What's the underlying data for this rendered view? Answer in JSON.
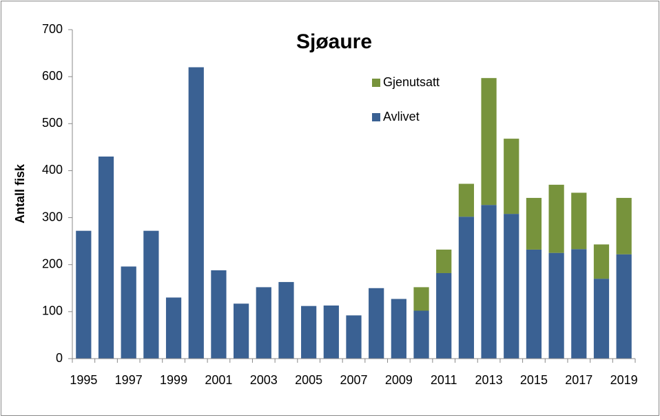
{
  "chart_data": {
    "type": "bar",
    "stacked": true,
    "title": "Sjøaure",
    "y_label": "Antall fisk",
    "categories": [
      "1995",
      null,
      "1997",
      null,
      "1999",
      null,
      "2001",
      null,
      "2003",
      null,
      "2005",
      null,
      "2007",
      null,
      "2009",
      null,
      "2011",
      null,
      "2013",
      null,
      "2015",
      null,
      "2017",
      null,
      "2019"
    ],
    "series": [
      {
        "name": "Avlivet",
        "color": "#3a6193",
        "values": [
          272,
          430,
          196,
          272,
          130,
          620,
          188,
          117,
          152,
          163,
          112,
          113,
          92,
          150,
          127,
          102,
          182,
          302,
          327,
          308,
          232,
          225,
          233,
          170,
          222
        ]
      },
      {
        "name": "Gjenutsatt",
        "color": "#77933c",
        "values": [
          null,
          null,
          null,
          null,
          null,
          null,
          null,
          null,
          null,
          null,
          null,
          null,
          null,
          null,
          null,
          50,
          50,
          70,
          270,
          160,
          110,
          145,
          120,
          73,
          120
        ]
      }
    ],
    "ylim": [
      0,
      700
    ],
    "yticks": [
      0,
      100,
      200,
      300,
      400,
      500,
      600,
      700
    ],
    "grid": false
  }
}
